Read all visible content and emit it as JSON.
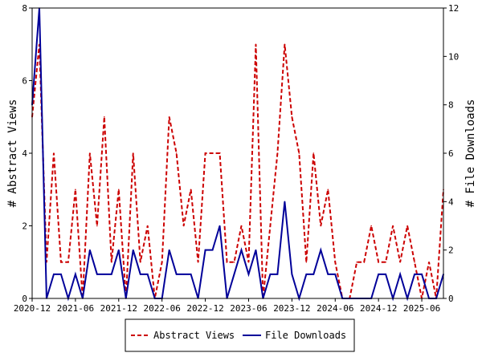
{
  "chart_data": {
    "type": "line",
    "title": "",
    "ylabel_left": "# Abstract Views",
    "ylabel_right": "# File Downloads",
    "ylim_left": [
      0,
      8
    ],
    "ylim_right": [
      0,
      12
    ],
    "yticks_left": [
      "0",
      "2",
      "4",
      "6",
      "8"
    ],
    "yticks_right": [
      "0",
      "2",
      "4",
      "6",
      "8",
      "10",
      "12"
    ],
    "x_range": [
      "2020-12",
      "2025-09"
    ],
    "xtick_labels": [
      "2020-12",
      "2021-06",
      "2021-12",
      "2022-06",
      "2022-12",
      "2023-06",
      "2023-12",
      "2024-06",
      "2024-12",
      "2025-06"
    ],
    "grid": false,
    "legend_position": "bottom",
    "series": [
      {
        "name": "Abstract Views",
        "axis": "left",
        "color": "#cc0000",
        "dash": "dashed",
        "x": [
          "2020-12",
          "2021-01",
          "2021-02",
          "2021-03",
          "2021-04",
          "2021-05",
          "2021-06",
          "2021-07",
          "2021-08",
          "2021-09",
          "2021-10",
          "2021-11",
          "2021-12",
          "2022-01",
          "2022-02",
          "2022-03",
          "2022-04",
          "2022-05",
          "2022-06",
          "2022-07",
          "2022-08",
          "2022-09",
          "2022-10",
          "2022-11",
          "2022-12",
          "2023-01",
          "2023-02",
          "2023-03",
          "2023-04",
          "2023-05",
          "2023-06",
          "2023-07",
          "2023-08",
          "2023-09",
          "2023-10",
          "2023-11",
          "2023-12",
          "2024-01",
          "2024-02",
          "2024-03",
          "2024-04",
          "2024-05",
          "2024-06",
          "2024-07",
          "2024-08",
          "2024-09",
          "2024-10",
          "2024-11",
          "2024-12",
          "2025-01",
          "2025-02",
          "2025-03",
          "2025-04",
          "2025-05",
          "2025-06",
          "2025-07",
          "2025-08",
          "2025-09"
        ],
        "values": [
          5,
          7,
          1,
          4,
          1,
          1,
          3,
          0,
          4,
          2,
          5,
          1,
          3,
          0,
          4,
          1,
          2,
          0,
          1,
          5,
          4,
          2,
          3,
          1,
          4,
          4,
          4,
          1,
          1,
          2,
          1,
          7,
          0,
          2,
          4,
          7,
          5,
          4,
          1,
          4,
          2,
          3,
          1,
          0,
          0,
          1,
          1,
          2,
          1,
          1,
          2,
          1,
          2,
          1,
          0,
          1,
          0,
          3
        ]
      },
      {
        "name": "File Downloads",
        "axis": "right",
        "color": "#000099",
        "dash": "solid",
        "x": [
          "2020-12",
          "2021-01",
          "2021-02",
          "2021-03",
          "2021-04",
          "2021-05",
          "2021-06",
          "2021-07",
          "2021-08",
          "2021-09",
          "2021-10",
          "2021-11",
          "2021-12",
          "2022-01",
          "2022-02",
          "2022-03",
          "2022-04",
          "2022-05",
          "2022-06",
          "2022-07",
          "2022-08",
          "2022-09",
          "2022-10",
          "2022-11",
          "2022-12",
          "2023-01",
          "2023-02",
          "2023-03",
          "2023-04",
          "2023-05",
          "2023-06",
          "2023-07",
          "2023-08",
          "2023-09",
          "2023-10",
          "2023-11",
          "2023-12",
          "2024-01",
          "2024-02",
          "2024-03",
          "2024-04",
          "2024-05",
          "2024-06",
          "2024-07",
          "2024-08",
          "2024-09",
          "2024-10",
          "2024-11",
          "2024-12",
          "2025-01",
          "2025-02",
          "2025-03",
          "2025-04",
          "2025-05",
          "2025-06",
          "2025-07",
          "2025-08",
          "2025-09"
        ],
        "values": [
          8,
          12,
          0,
          1,
          1,
          0,
          1,
          0,
          2,
          1,
          1,
          1,
          2,
          0,
          2,
          1,
          1,
          0,
          0,
          2,
          1,
          1,
          1,
          0,
          2,
          2,
          3,
          0,
          1,
          2,
          1,
          2,
          0,
          1,
          1,
          4,
          1,
          0,
          1,
          1,
          2,
          1,
          1,
          0,
          0,
          0,
          0,
          0,
          1,
          1,
          0,
          1,
          0,
          1,
          1,
          0,
          0,
          1
        ]
      }
    ]
  }
}
